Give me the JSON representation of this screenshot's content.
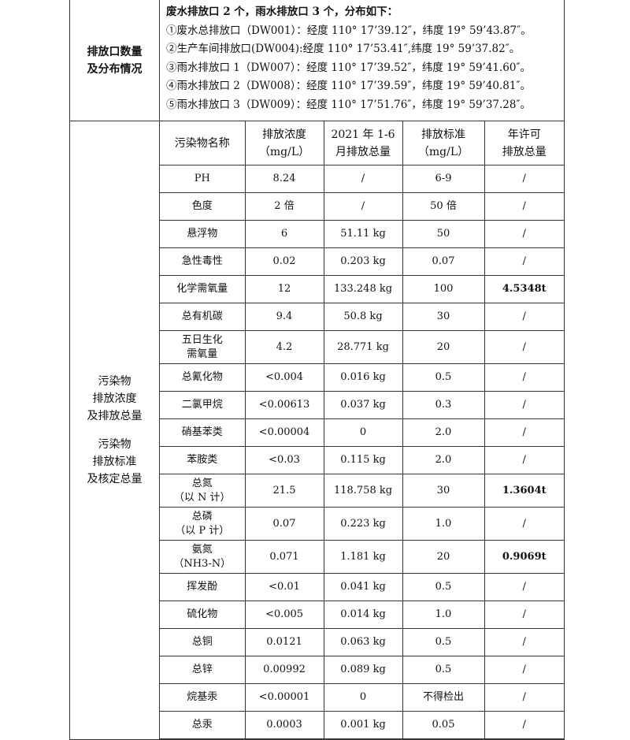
{
  "outlets": {
    "label_lines": [
      "排放口数量",
      "及分布情况"
    ],
    "summary": "废水排放口 2 个，雨水排放口 3 个，分布如下：",
    "items": [
      "①废水总排放口（DW001）：经度 110° 17’39.12″，纬度 19° 59’43.87″。",
      "②生产车间排放口(DW004):经度 110° 17’53.41″,纬度 19° 59’37.82″。",
      "③雨水排放口 1（DW007）：经度 110° 17’39.52″，纬度 19° 59’41.60″。",
      "④雨水排放口 2（DW008）：经度 110° 17’39.59″，纬度 19° 59’40.81″。",
      "⑤雨水排放口 3（DW009）：经度 110° 17’51.76″，纬度 19° 59’37.28″。"
    ]
  },
  "pollutants": {
    "label_lines_a": [
      "污染物",
      "排放浓度",
      "及排放总量"
    ],
    "label_lines_b": [
      "污染物",
      "排放标准",
      "及核定总量"
    ],
    "headers": [
      [
        "污染物名称"
      ],
      [
        "排放浓度",
        "（mg/L）"
      ],
      [
        "2021 年 1-6",
        "月排放总量"
      ],
      [
        "排放标准",
        "（mg/L）"
      ],
      [
        "年许可",
        "排放总量"
      ]
    ],
    "rows": [
      {
        "name": [
          "PH"
        ],
        "conc": "8.24",
        "total": "/",
        "std": "6-9",
        "permit": "/"
      },
      {
        "name": [
          "色度"
        ],
        "conc": "2 倍",
        "total": "/",
        "std": "50 倍",
        "permit": "/"
      },
      {
        "name": [
          "悬浮物"
        ],
        "conc": "6",
        "total": "51.11 kg",
        "std": "50",
        "permit": "/"
      },
      {
        "name": [
          "急性毒性"
        ],
        "conc": "0.02",
        "total": "0.203 kg",
        "std": "0.07",
        "permit": "/"
      },
      {
        "name": [
          "化学需氧量"
        ],
        "conc": "12",
        "total": "133.248 kg",
        "std": "100",
        "permit": "4.5348t"
      },
      {
        "name": [
          "总有机碳"
        ],
        "conc": "9.4",
        "total": "50.8 kg",
        "std": "30",
        "permit": "/"
      },
      {
        "name": [
          "五日生化",
          "需氧量"
        ],
        "conc": "4.2",
        "total": "28.771 kg",
        "std": "20",
        "permit": "/"
      },
      {
        "name": [
          "总氰化物"
        ],
        "conc": "<0.004",
        "total": "0.016 kg",
        "std": "0.5",
        "permit": "/"
      },
      {
        "name": [
          "二氯甲烷"
        ],
        "conc": "<0.00613",
        "total": "0.037 kg",
        "std": "0.3",
        "permit": "/"
      },
      {
        "name": [
          "硝基苯类"
        ],
        "conc": "<0.00004",
        "total": "0",
        "std": "2.0",
        "permit": "/"
      },
      {
        "name": [
          "苯胺类"
        ],
        "conc": "<0.03",
        "total": "0.115 kg",
        "std": "2.0",
        "permit": "/"
      },
      {
        "name": [
          "总氮",
          "（以 N 计）"
        ],
        "conc": "21.5",
        "total": "118.758 kg",
        "std": "30",
        "permit": "1.3604t"
      },
      {
        "name": [
          "总磷",
          "（以 P 计）"
        ],
        "conc": "0.07",
        "total": "0.223 kg",
        "std": "1.0",
        "permit": "/"
      },
      {
        "name": [
          "氨氮",
          "（NH3-N）"
        ],
        "conc": "0.071",
        "total": "1.181 kg",
        "std": "20",
        "permit": "0.9069t"
      },
      {
        "name": [
          "挥发酚"
        ],
        "conc": "<0.01",
        "total": "0.041 kg",
        "std": "0.5",
        "permit": "/"
      },
      {
        "name": [
          "硫化物"
        ],
        "conc": "<0.005",
        "total": "0.014 kg",
        "std": "1.0",
        "permit": "/"
      },
      {
        "name": [
          "总铜"
        ],
        "conc": "0.0121",
        "total": "0.063 kg",
        "std": "0.5",
        "permit": "/"
      },
      {
        "name": [
          "总锌"
        ],
        "conc": "0.00992",
        "total": "0.089 kg",
        "std": "0.5",
        "permit": "/"
      },
      {
        "name": [
          "烷基汞"
        ],
        "conc": "<0.00001",
        "total": "0",
        "std": "不得检出",
        "permit": "/"
      },
      {
        "name": [
          "总汞"
        ],
        "conc": "0.0003",
        "total": "0.001 kg",
        "std": "0.05",
        "permit": "/"
      }
    ]
  }
}
